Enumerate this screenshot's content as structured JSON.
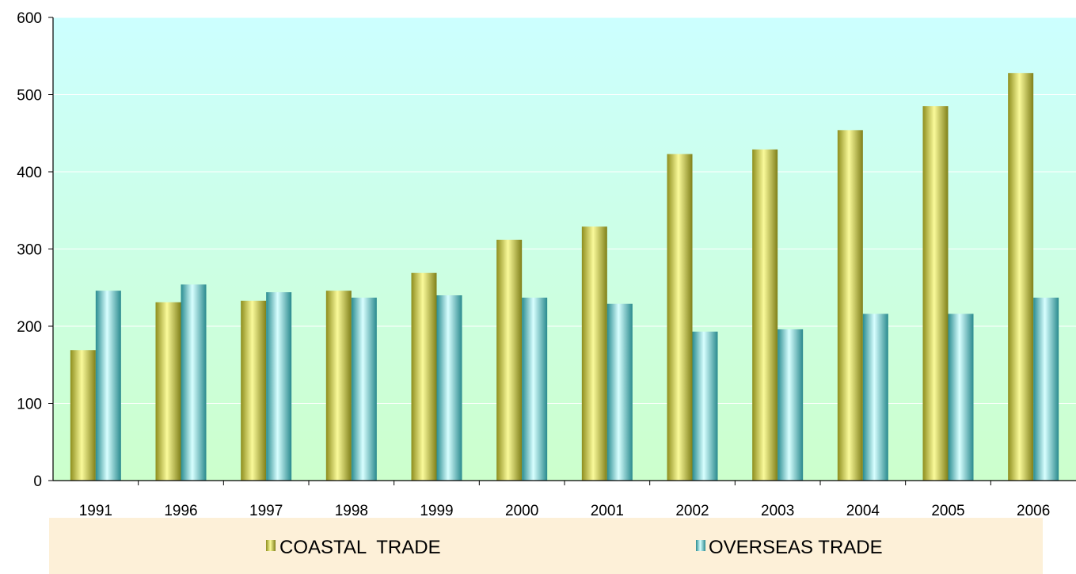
{
  "chart_data": {
    "type": "bar",
    "title": "",
    "xlabel": "",
    "ylabel": "",
    "categories": [
      "1991",
      "1996",
      "1997",
      "1998",
      "1999",
      "2000",
      "2001",
      "2002",
      "2003",
      "2004",
      "2005",
      "2006"
    ],
    "series": [
      {
        "name": "COASTAL  TRADE",
        "values": [
          169,
          231,
          233,
          246,
          269,
          312,
          329,
          423,
          429,
          454,
          485,
          528
        ],
        "color": "#cfcf3c"
      },
      {
        "name": "OVERSEAS TRADE",
        "values": [
          246,
          254,
          244,
          237,
          240,
          237,
          229,
          193,
          196,
          216,
          216,
          237
        ],
        "color": "#5fb7bb"
      }
    ],
    "ylim": [
      0,
      600
    ],
    "yticks": [
      "0",
      "100",
      "200",
      "300",
      "400",
      "500",
      "600"
    ],
    "grid": true,
    "legend_position": "bottom",
    "plot_background": [
      "#ccffff",
      "#ccffcc"
    ],
    "legend_background": "#fdf0d8"
  }
}
